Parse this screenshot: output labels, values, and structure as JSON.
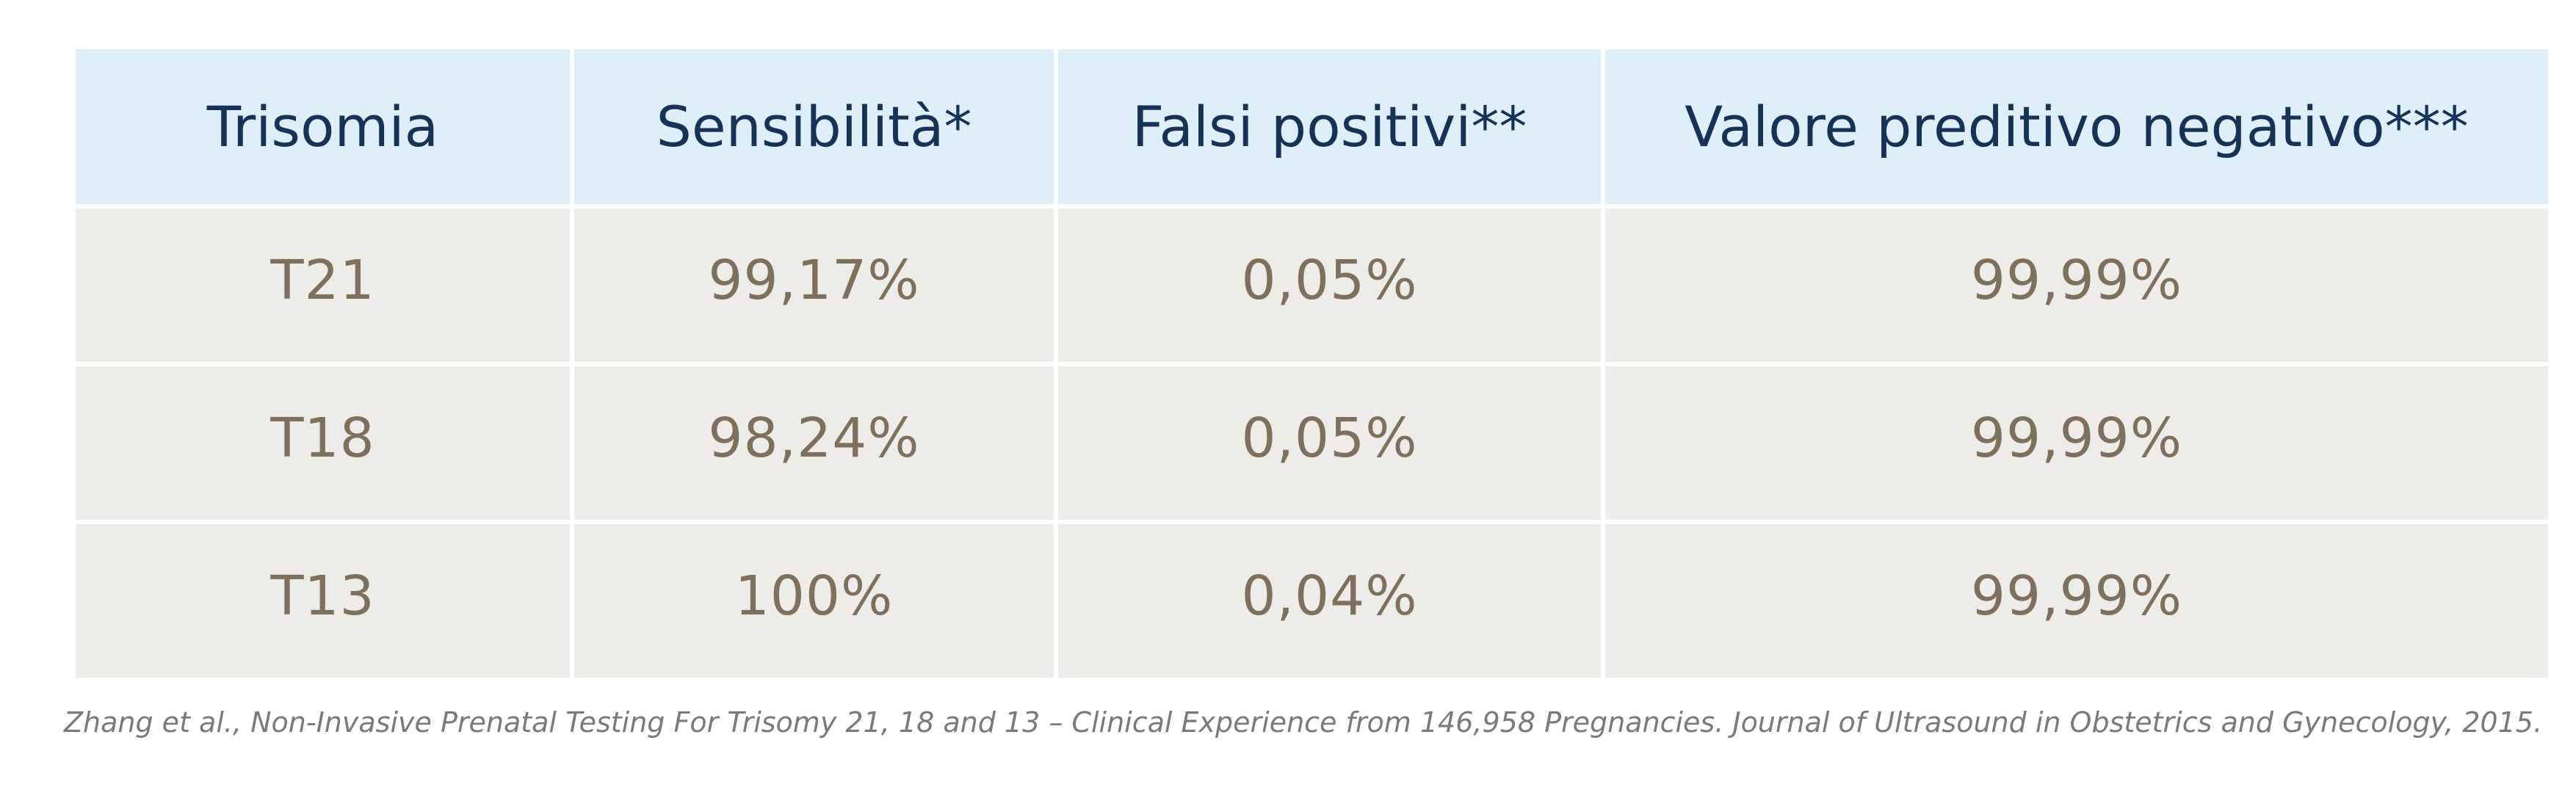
{
  "table": {
    "headers": [
      "Trisomia",
      "Sensibilità*",
      "Falsi positivi**",
      "Valore preditivo negativo***"
    ],
    "rows": [
      [
        "T21",
        "99,17%",
        "0,05%",
        "99,99%"
      ],
      [
        "T18",
        "98,24%",
        "0,05%",
        "99,99%"
      ],
      [
        "T13",
        "100%",
        "0,04%",
        "99,99%"
      ]
    ]
  },
  "citation": "Zhang et al., Non-Invasive Prenatal Testing For Trisomy 21, 18 and 13 – Clinical Experience from 146,958 Pregnancies. Journal of Ultrasound in Obstetrics and Gynecology, 2015.",
  "colors": {
    "header_background": "#dfeffa",
    "header_text": "#163257",
    "row_background": "#eeece8",
    "row_text": "#7e705d"
  }
}
